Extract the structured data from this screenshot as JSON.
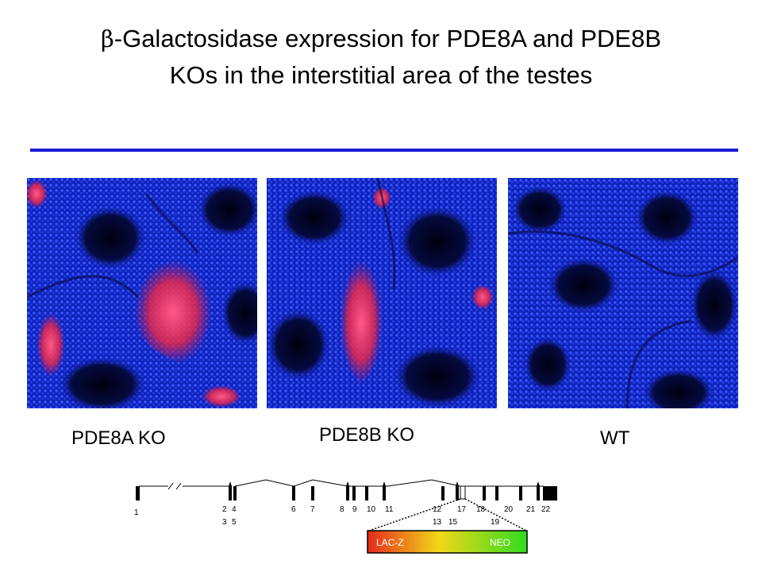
{
  "title": {
    "beta": "β",
    "line1": "-Galactosidase expression for PDE8A and PDE8B",
    "line2": "KOs in the interstitial area of the testes"
  },
  "panels": [
    {
      "label": "PDE8A KO"
    },
    {
      "label": "PDE8B KO"
    },
    {
      "label": "WT"
    }
  ],
  "gene_diagram": {
    "exon_labels": [
      "1",
      "2",
      "3",
      "4",
      "5",
      "6",
      "7",
      "8",
      "9",
      "10",
      "11",
      "12",
      "13",
      "15",
      "17",
      "18",
      "19",
      "20",
      "21",
      "22"
    ],
    "cassette": {
      "left_label": "LAC-Z",
      "right_label": "NEO"
    }
  },
  "colors": {
    "rule": "#1a1ad6",
    "nuclei": "#1e36e0",
    "signal": "#e8284a",
    "cassette_start": "#e52a1a",
    "cassette_mid": "#f2d81a",
    "cassette_end": "#2fdc1e"
  }
}
